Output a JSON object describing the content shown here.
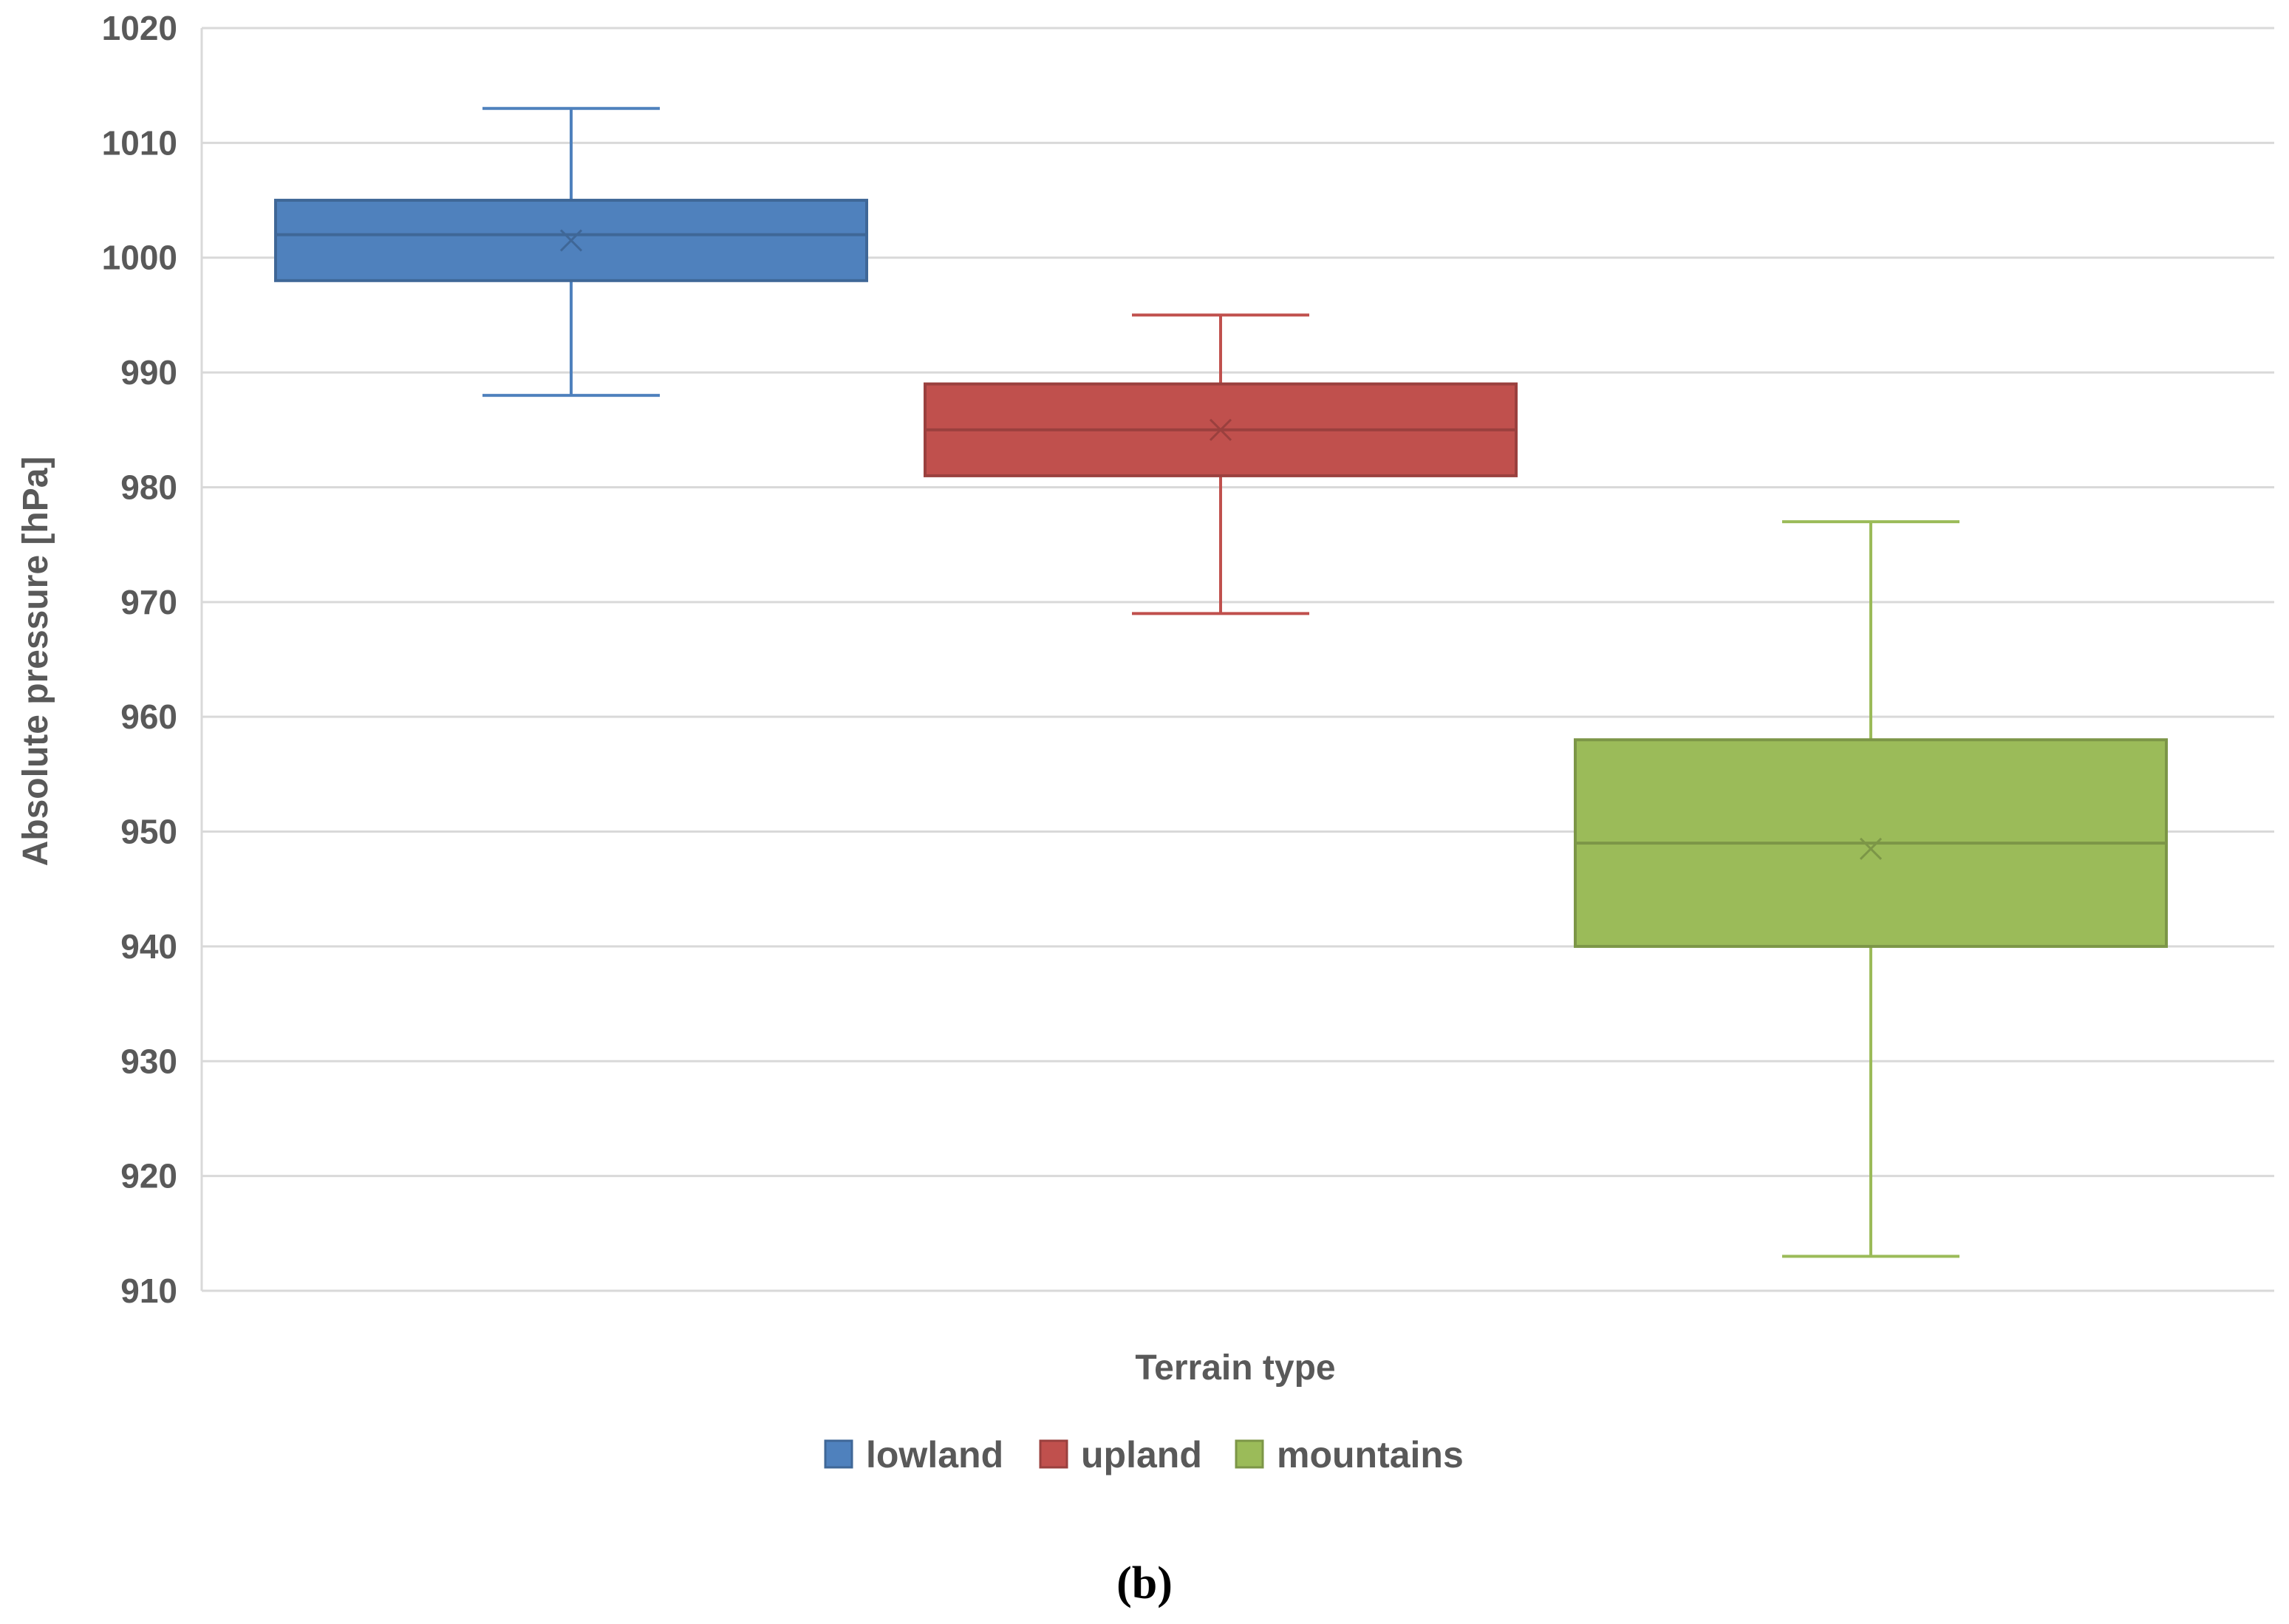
{
  "chart_data": {
    "type": "box",
    "ylabel": "Absolute pressure [hPa]",
    "xlabel": "Terrain type",
    "ylim": [
      910,
      1020
    ],
    "yticks": [
      "1020",
      "1010",
      "1000",
      "990",
      "980",
      "970",
      "960",
      "950",
      "940",
      "930",
      "920",
      "910"
    ],
    "grid": true,
    "legend_position": "bottom",
    "series": [
      {
        "name": "lowland",
        "color": "#4F81BD",
        "min": 988,
        "q1": 998,
        "median": 1002,
        "mean": 1001.5,
        "q3": 1005,
        "max": 1013
      },
      {
        "name": "upland",
        "color": "#C0504D",
        "min": 969,
        "q1": 981,
        "median": 985,
        "mean": 985,
        "q3": 989,
        "max": 995
      },
      {
        "name": "mountains",
        "color": "#9BBB59",
        "min": 913,
        "q1": 940,
        "median": 949,
        "mean": 948.5,
        "q3": 958,
        "max": 977
      }
    ],
    "panel_label": "(b)"
  }
}
